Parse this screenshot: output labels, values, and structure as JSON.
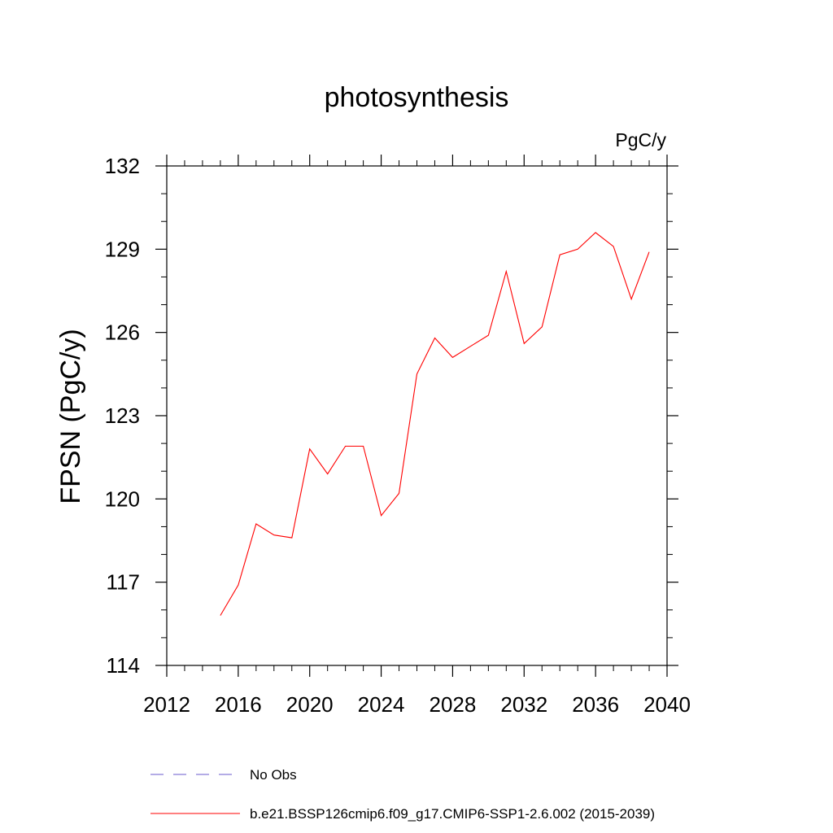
{
  "chart_data": {
    "type": "line",
    "title": "photosynthesis",
    "units_label": "PgC/y",
    "xlabel": "",
    "ylabel": "FPSN  (PgC/y)",
    "xlim": [
      2012,
      2040
    ],
    "ylim": [
      114,
      132
    ],
    "x_ticks": [
      2012,
      2016,
      2020,
      2024,
      2028,
      2032,
      2036,
      2040
    ],
    "y_ticks": [
      114,
      117,
      120,
      123,
      126,
      129,
      132
    ],
    "x_minor_step": 1,
    "y_minor_step": 1,
    "grid": false,
    "legend_position": "bottom",
    "series": [
      {
        "name": "b.e21.BSSP126cmip6.f09_g17.CMIP6-SSP1-2.6.002 (2015-2039)",
        "color": "#ff0000",
        "style": "solid",
        "x": [
          2015,
          2016,
          2017,
          2018,
          2019,
          2020,
          2021,
          2022,
          2023,
          2024,
          2025,
          2026,
          2027,
          2028,
          2029,
          2030,
          2031,
          2032,
          2033,
          2034,
          2035,
          2036,
          2037,
          2038,
          2039
        ],
        "y": [
          115.8,
          116.9,
          119.1,
          118.7,
          118.6,
          121.8,
          120.9,
          121.9,
          121.9,
          119.4,
          120.2,
          124.5,
          125.8,
          125.1,
          125.5,
          125.9,
          128.2,
          125.6,
          126.2,
          128.8,
          129.0,
          129.6,
          129.1,
          127.2,
          128.9
        ]
      }
    ],
    "legend": [
      {
        "label": "No Obs",
        "color": "#6a5acd",
        "style": "dashed"
      },
      {
        "label": "b.e21.BSSP126cmip6.f09_g17.CMIP6-SSP1-2.6.002 (2015-2039)",
        "color": "#ff0000",
        "style": "solid"
      }
    ]
  }
}
